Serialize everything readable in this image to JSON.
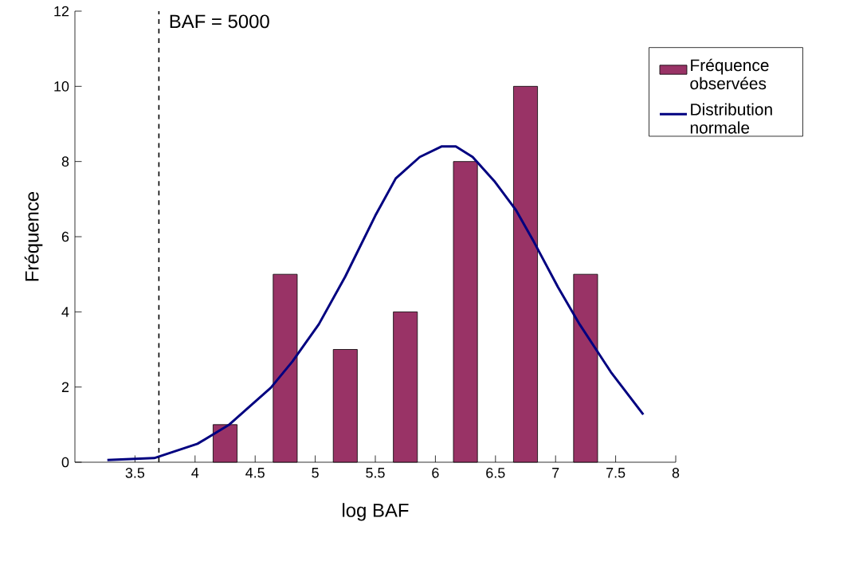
{
  "chart_data": {
    "type": "bar",
    "xlabel": "log BAF",
    "ylabel": "Fréquence",
    "xlim": [
      3,
      8
    ],
    "ylim": [
      0,
      12
    ],
    "xticks": [
      3.5,
      4,
      4.5,
      5,
      5.5,
      6,
      6.5,
      7,
      7.5,
      8
    ],
    "yticks": [
      0,
      2,
      4,
      6,
      8,
      10,
      12
    ],
    "series": [
      {
        "name": "Fréquence observées",
        "color": "#993366",
        "x": [
          4.25,
          4.75,
          5.25,
          5.75,
          6.25,
          6.75,
          7.25
        ],
        "values": [
          1,
          5,
          3,
          4,
          8,
          10,
          5
        ]
      },
      {
        "name": "Distribution normale",
        "type": "line",
        "color": "#000080",
        "x": [
          3.27,
          3.66,
          4.02,
          4.28,
          4.63,
          4.81,
          5.03,
          5.25,
          5.5,
          5.67,
          5.87,
          6.05,
          6.17,
          6.31,
          6.49,
          6.67,
          6.82,
          7.02,
          7.2,
          7.46,
          7.73
        ],
        "values": [
          0.06,
          0.11,
          0.49,
          0.99,
          1.98,
          2.68,
          3.67,
          4.94,
          6.56,
          7.55,
          8.12,
          8.4,
          8.4,
          8.12,
          7.48,
          6.71,
          5.86,
          4.66,
          3.67,
          2.4,
          1.27
        ]
      }
    ],
    "ref_lines": [
      {
        "axis": "x",
        "value": 3.699,
        "color": "#000000",
        "line_style": "dashed"
      }
    ],
    "annotations": [
      "BAF = 5000"
    ],
    "legend": "right",
    "grid": false
  }
}
